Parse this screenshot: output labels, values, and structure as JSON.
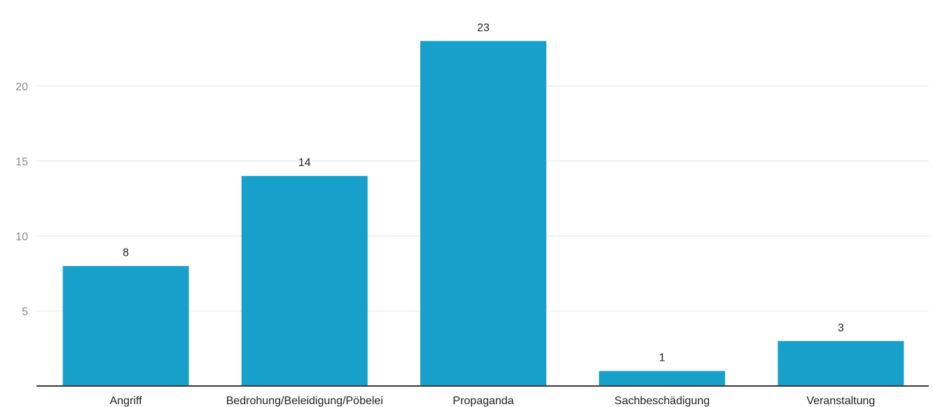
{
  "chart_data": {
    "type": "bar",
    "categories": [
      "Angriff",
      "Bedrohung/Beleidigung/Pöbelei",
      "Propaganda",
      "Sachbeschädigung",
      "Veranstaltung"
    ],
    "values": [
      8,
      14,
      23,
      1,
      3
    ],
    "title": "",
    "xlabel": "",
    "ylabel": "",
    "ylim": [
      0,
      25
    ],
    "yticks": [
      5,
      10,
      15,
      20
    ],
    "grid": true,
    "legend": "none",
    "bar_color": "#17a0c9",
    "data_labels": [
      "8",
      "14",
      "23",
      "1",
      "3"
    ]
  }
}
